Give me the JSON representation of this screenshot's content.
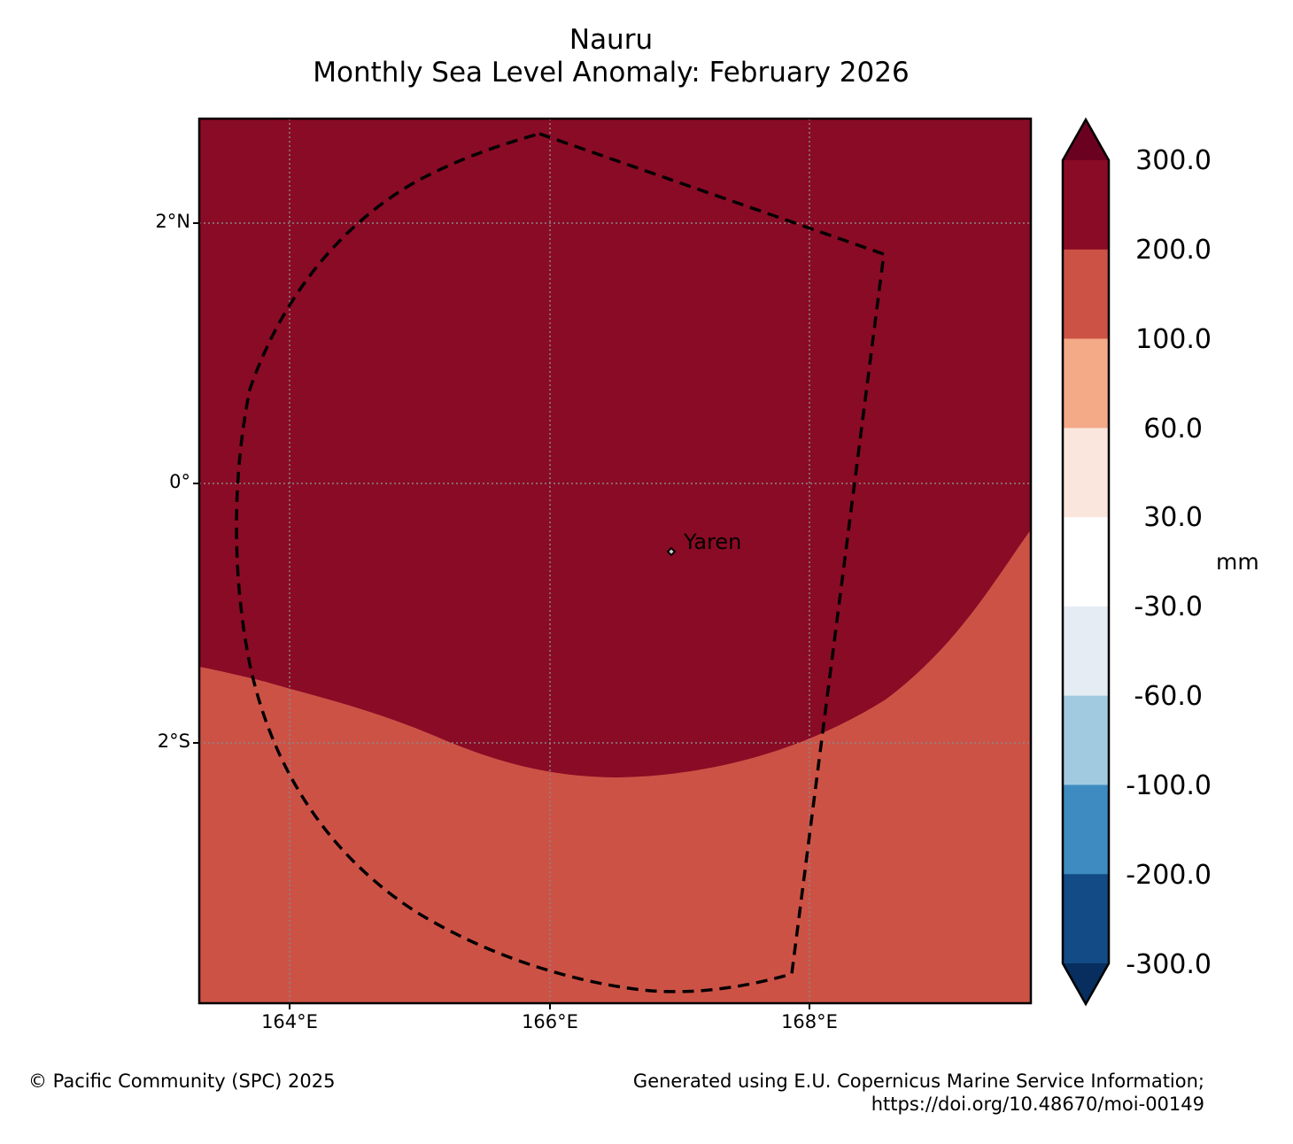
{
  "title": "Nauru",
  "subtitle": "Monthly Sea Level Anomaly: February 2026",
  "map": {
    "lat_ticks": [
      "2°N",
      "0°",
      "2°S"
    ],
    "lon_ticks": [
      "164°E",
      "166°E",
      "168°E"
    ],
    "place_label": "Yaren",
    "colors": {
      "above_200": "#8a0b25",
      "100_to_200": "#cd5246"
    }
  },
  "colorbar": {
    "unit": "mm",
    "labels": [
      "300.0",
      "200.0",
      "100.0",
      "60.0",
      "30.0",
      "-30.0",
      "-60.0",
      "-100.0",
      "-200.0",
      "-300.0"
    ],
    "colors": [
      "#6b0121",
      "#8a0b25",
      "#cd5246",
      "#f4a987",
      "#fae6dc",
      "#ffffff",
      "#e5ecf4",
      "#a1cae1",
      "#3e8bc1",
      "#124b86",
      "#072e5e"
    ]
  },
  "footer": {
    "copyright": "© Pacific Community (SPC) 2025",
    "source_line1": "Generated using E.U. Copernicus Marine Service Information;",
    "source_line2": "https://doi.org/10.48670/moi-00149"
  }
}
